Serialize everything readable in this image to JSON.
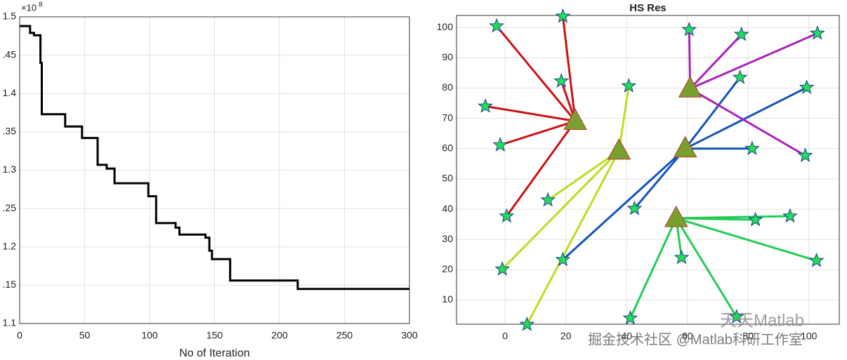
{
  "chart_data": [
    {
      "type": "line",
      "xlabel": "No of Iteration",
      "y_multiplier": "×10",
      "y_multiplier_exp": "8",
      "color": "#000000",
      "x": [
        0,
        8,
        8,
        11,
        11,
        16,
        16,
        17,
        17,
        35,
        35,
        48,
        48,
        60,
        60,
        67,
        67,
        73,
        73,
        99,
        99,
        105,
        105,
        120,
        120,
        123,
        123,
        143,
        143,
        146,
        146,
        148,
        148,
        162,
        162,
        214,
        214,
        300
      ],
      "values": [
        1.488,
        1.488,
        1.479,
        1.479,
        1.476,
        1.476,
        1.44,
        1.44,
        1.373,
        1.373,
        1.357,
        1.357,
        1.342,
        1.342,
        1.307,
        1.307,
        1.302,
        1.302,
        1.283,
        1.283,
        1.266,
        1.266,
        1.231,
        1.231,
        1.225,
        1.225,
        1.216,
        1.216,
        1.212,
        1.212,
        1.195,
        1.195,
        1.184,
        1.184,
        1.156,
        1.156,
        1.145,
        1.145
      ],
      "xlim": [
        0,
        300
      ],
      "xticks": [
        0,
        50,
        100,
        150,
        200,
        250,
        300
      ],
      "ylim": [
        1.1,
        1.5
      ],
      "yticks": [
        1.1,
        {
          "value": 1.15,
          "label": ".15"
        },
        1.2,
        {
          "value": 1.25,
          "label": ".25"
        },
        1.3,
        {
          "value": 1.35,
          "label": ".35"
        },
        1.4,
        {
          "value": 1.45,
          "label": ".45"
        },
        1.5
      ],
      "grid": true
    },
    {
      "type": "cluster",
      "title": "HS Res",
      "star_color": "#22dd55",
      "center_color": "#77a030",
      "xlim": [
        -16,
        110
      ],
      "xticks": [
        0,
        20,
        40,
        60,
        80,
        100
      ],
      "ylim": [
        2,
        104
      ],
      "yticks": [
        10,
        20,
        30,
        40,
        50,
        60,
        70,
        80,
        90,
        100
      ],
      "grid": true,
      "series": [
        {
          "color": "#cc1111",
          "center": [
            23.1,
            69.1
          ],
          "x": [
            -2.8,
            19,
            18.5,
            -6.5,
            -1.6,
            0.5
          ],
          "y": [
            100.5,
            103.7,
            82.3,
            74,
            61.2,
            37.7
          ]
        },
        {
          "color": "#bbdd22",
          "center": [
            37.5,
            59.3
          ],
          "x": [
            40.7,
            14.1,
            -0.9,
            7.2
          ],
          "y": [
            80.7,
            43,
            20.2,
            1.9
          ]
        },
        {
          "color": "#1155bb",
          "center": [
            59.3,
            60
          ],
          "x": [
            77.3,
            99.3,
            81.3,
            42.6,
            19
          ],
          "y": [
            83.5,
            80.2,
            60,
            40.2,
            23.3
          ]
        },
        {
          "color": "#aa22bb",
          "center": [
            60.9,
            79.8
          ],
          "x": [
            60.6,
            77.8,
            102.8,
            98.8
          ],
          "y": [
            99.3,
            97.7,
            98.1,
            57.7
          ]
        },
        {
          "color": "#22cc55",
          "center": [
            56.3,
            37
          ],
          "x": [
            82.4,
            93.8,
            102.5,
            58.1,
            41.2,
            76.2
          ],
          "y": [
            36.5,
            37.7,
            23,
            24,
            4,
            4.4
          ]
        }
      ]
    }
  ],
  "watermark": {
    "line1": "天天Matlab",
    "line2": "掘金技术社区 @Matlab科研工作室"
  }
}
